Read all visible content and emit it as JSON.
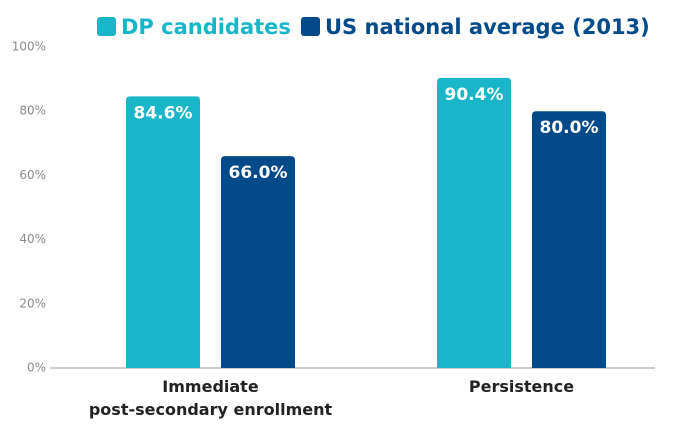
{
  "chart_data": {
    "type": "bar",
    "categories": [
      "Immediate\npost-secondary enrollment",
      "Persistence"
    ],
    "series": [
      {
        "name": "DP candidates",
        "color": "#19b5c8",
        "values": [
          84.6,
          90.4
        ],
        "value_labels": [
          "84.6%",
          "90.4%"
        ]
      },
      {
        "name": "US national average (2013)",
        "color": "#014a8a",
        "values": [
          66.0,
          80.0
        ],
        "value_labels": [
          "66.0%",
          "80.0%"
        ]
      }
    ],
    "ylim": [
      0,
      100
    ],
    "yticks": [
      {
        "value": 0,
        "label": "0%"
      },
      {
        "value": 20,
        "label": "20%"
      },
      {
        "value": 40,
        "label": "40%"
      },
      {
        "value": 60,
        "label": "60%"
      },
      {
        "value": 80,
        "label": "80%"
      },
      {
        "value": 100,
        "label": "100%"
      }
    ],
    "grid": false,
    "legend": "top"
  }
}
